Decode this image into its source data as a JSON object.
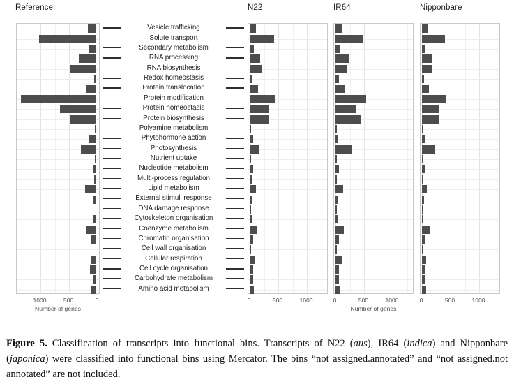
{
  "figure": {
    "panel_titles": [
      "Reference",
      "N22",
      "IR64",
      "Nipponbare"
    ],
    "xlabel": "Number of genes"
  },
  "chart_data": {
    "type": "bar",
    "orientation": "horizontal",
    "title": "",
    "xlabel": "Number of genes",
    "xlim": [
      0,
      1400
    ],
    "x_ticks": [
      0,
      500,
      1000
    ],
    "grid": true,
    "minor_ticks": [
      250,
      750,
      1250
    ],
    "bar_color": "#4d4d4d",
    "categories": [
      "Vesicle trafficking",
      "Solute transport",
      "Secondary metabolism",
      "RNA processing",
      "RNA biosynthesis",
      "Redox homeostasis",
      "Protein translocation",
      "Protein modification",
      "Protein homeostasis",
      "Protein biosynthesis",
      "Polyamine metabolism",
      "Phytohormone action",
      "Photosynthesis",
      "Nutrient uptake",
      "Nucleotide metabolism",
      "Multi-process regulation",
      "Lipid metabolism",
      "External stimuli response",
      "DNA damage response",
      "Cytoskeleton organisation",
      "Coenzyme metabolism",
      "Chromatin organisation",
      "Cell wall organisation",
      "Cellular respiration",
      "Cell cycle organisation",
      "Carbohydrate metabolism",
      "Amino acid metabolism"
    ],
    "series": [
      {
        "name": "Reference",
        "axis_reversed": true,
        "values": [
          150,
          1000,
          120,
          310,
          470,
          40,
          175,
          1320,
          630,
          450,
          20,
          120,
          265,
          30,
          50,
          40,
          190,
          55,
          12,
          50,
          175,
          90,
          12,
          100,
          110,
          60,
          100
        ]
      },
      {
        "name": "N22",
        "axis_reversed": false,
        "values": [
          105,
          425,
          75,
          185,
          210,
          50,
          150,
          455,
          345,
          345,
          15,
          55,
          175,
          15,
          55,
          30,
          110,
          50,
          10,
          40,
          120,
          55,
          8,
          80,
          55,
          55,
          70
        ]
      },
      {
        "name": "IR64",
        "axis_reversed": false,
        "values": [
          120,
          485,
          75,
          235,
          190,
          55,
          165,
          530,
          350,
          435,
          12,
          48,
          280,
          15,
          55,
          25,
          130,
          50,
          8,
          40,
          145,
          65,
          10,
          110,
          65,
          65,
          80
        ]
      },
      {
        "name": "Nipponbare",
        "axis_reversed": false,
        "values": [
          95,
          405,
          60,
          170,
          175,
          40,
          125,
          410,
          290,
          310,
          12,
          45,
          235,
          10,
          48,
          25,
          90,
          35,
          8,
          28,
          130,
          55,
          8,
          70,
          48,
          55,
          70
        ]
      }
    ]
  },
  "caption": {
    "parts": [
      {
        "text": "Figure 5.",
        "bold": true
      },
      {
        "text": " Classification of transcripts into functional bins.  Transcripts of N22 ("
      },
      {
        "text": "aus",
        "italic": true
      },
      {
        "text": "), IR64 ("
      },
      {
        "text": "indica",
        "italic": true
      },
      {
        "text": ") and Nipponbare ("
      },
      {
        "text": "japonica",
        "italic": true
      },
      {
        "text": ") were classified into functional bins using Mercator.  The bins “not assigned.annotated” and “not assigned.not annotated” are not included."
      }
    ]
  }
}
